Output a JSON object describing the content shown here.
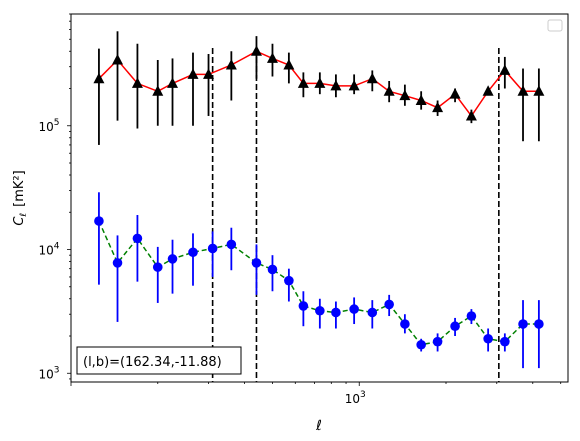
{
  "chart_data": {
    "type": "scatter",
    "xscale": "log",
    "yscale": "log",
    "xlim": [
      100,
      5300
    ],
    "ylim": [
      850,
      800000
    ],
    "xlabel": "ℓ",
    "ylabel_main": "C",
    "ylabel_sub": "ℓ",
    "ylabel_unit": "[mK²]",
    "x_major_ticks": [
      {
        "value": 1000,
        "base": "10",
        "exp": "3"
      }
    ],
    "y_major_ticks": [
      {
        "value": 1000,
        "base": "10",
        "exp": "3"
      },
      {
        "value": 10000,
        "base": "10",
        "exp": "4"
      },
      {
        "value": 100000,
        "base": "10",
        "exp": "5"
      }
    ],
    "vlines": [
      310,
      440,
      3050
    ],
    "annotation": "(l,b)=(162.34,-11.88)",
    "legend": {
      "placement": "top-right",
      "entries": []
    },
    "series": [
      {
        "marker": "triangle",
        "line_style": "solid",
        "line_color": "#ff0000",
        "marker_color": "#000000",
        "x": [
          125,
          145,
          170,
          200,
          225,
          265,
          300,
          360,
          440,
          500,
          570,
          640,
          730,
          830,
          960,
          1110,
          1270,
          1440,
          1640,
          1870,
          2150,
          2450,
          2800,
          3200,
          3700,
          4200
        ],
        "y": [
          240000,
          340000,
          220000,
          190000,
          220000,
          260000,
          260000,
          310000,
          400000,
          350000,
          310000,
          220000,
          220000,
          210000,
          210000,
          240000,
          190000,
          175000,
          160000,
          140000,
          180000,
          120000,
          190000,
          280000,
          190000,
          190000
        ],
        "err_low": [
          70000,
          110000,
          95000,
          100000,
          100000,
          100000,
          120000,
          160000,
          240000,
          250000,
          220000,
          170000,
          180000,
          170000,
          180000,
          190000,
          155000,
          145000,
          135000,
          120000,
          155000,
          105000,
          0,
          200000,
          75000,
          75000
        ],
        "err_high": [
          420000,
          580000,
          460000,
          340000,
          350000,
          390000,
          380000,
          400000,
          530000,
          460000,
          390000,
          270000,
          270000,
          260000,
          260000,
          280000,
          230000,
          215000,
          190000,
          160000,
          200000,
          135000,
          0,
          360000,
          290000,
          290000
        ]
      },
      {
        "marker": "circle",
        "line_style": "dashed",
        "line_color": "#008000",
        "marker_color": "#0000ff",
        "x": [
          125,
          145,
          170,
          200,
          225,
          265,
          310,
          360,
          440,
          500,
          570,
          640,
          730,
          830,
          960,
          1110,
          1270,
          1440,
          1640,
          1870,
          2150,
          2450,
          2800,
          3200,
          3700,
          4200
        ],
        "y": [
          17000,
          7800,
          12300,
          7200,
          8400,
          9500,
          10200,
          11000,
          7800,
          6900,
          5600,
          3500,
          3200,
          3100,
          3300,
          3100,
          3600,
          2500,
          1700,
          1800,
          2400,
          2900,
          1900,
          1800,
          2500,
          2500
        ],
        "err_low": [
          5200,
          2600,
          5500,
          3700,
          4400,
          5100,
          6000,
          6800,
          4300,
          4600,
          3800,
          2400,
          2300,
          2300,
          2500,
          2300,
          2900,
          2100,
          1500,
          1500,
          2000,
          2500,
          1500,
          1500,
          1100,
          1100
        ],
        "err_high": [
          29000,
          13000,
          19000,
          10500,
          12000,
          13500,
          14000,
          15000,
          11000,
          9000,
          7000,
          4600,
          4000,
          3800,
          4100,
          3900,
          4300,
          3000,
          1900,
          2100,
          2800,
          3300,
          2300,
          2100,
          3900,
          3900
        ]
      }
    ]
  }
}
